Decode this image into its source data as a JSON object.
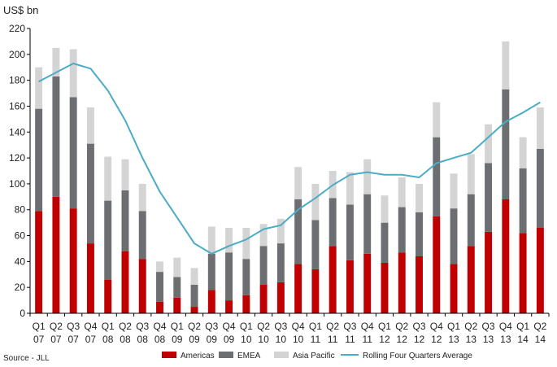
{
  "chart_data": {
    "type": "bar",
    "stacked": true,
    "unit_label": "US$ bn",
    "source": "Source - JLL",
    "ylim": [
      0,
      220
    ],
    "yticks": [
      0,
      20,
      40,
      60,
      80,
      100,
      120,
      140,
      160,
      180,
      200,
      220
    ],
    "grid": false,
    "legend_position": "bottom",
    "categories": [
      [
        "Q1",
        "07"
      ],
      [
        "Q2",
        "07"
      ],
      [
        "Q3",
        "07"
      ],
      [
        "Q4",
        "07"
      ],
      [
        "Q1",
        "08"
      ],
      [
        "Q2",
        "08"
      ],
      [
        "Q3",
        "08"
      ],
      [
        "Q4",
        "08"
      ],
      [
        "Q1",
        "09"
      ],
      [
        "Q2",
        "09"
      ],
      [
        "Q3",
        "09"
      ],
      [
        "Q4",
        "09"
      ],
      [
        "Q1",
        "10"
      ],
      [
        "Q2",
        "10"
      ],
      [
        "Q3",
        "10"
      ],
      [
        "Q4",
        "10"
      ],
      [
        "Q1",
        "11"
      ],
      [
        "Q2",
        "11"
      ],
      [
        "Q3",
        "11"
      ],
      [
        "Q4",
        "11"
      ],
      [
        "Q1",
        "12"
      ],
      [
        "Q2",
        "12"
      ],
      [
        "Q3",
        "12"
      ],
      [
        "Q4",
        "12"
      ],
      [
        "Q1",
        "13"
      ],
      [
        "Q2",
        "13"
      ],
      [
        "Q3",
        "13"
      ],
      [
        "Q4",
        "13"
      ],
      [
        "Q1",
        "14"
      ],
      [
        "Q2",
        "14"
      ]
    ],
    "series": [
      {
        "name": "Americas",
        "color": "#c00000",
        "values": [
          79,
          90,
          81,
          54,
          26,
          48,
          42,
          9,
          12,
          5,
          18,
          10,
          14,
          22,
          24,
          38,
          34,
          52,
          41,
          46,
          39,
          47,
          44,
          75,
          38,
          52,
          63,
          88,
          62,
          66
        ]
      },
      {
        "name": "EMEA",
        "color": "#6d6e71",
        "values": [
          79,
          93,
          86,
          77,
          61,
          47,
          37,
          23,
          16,
          17,
          28,
          37,
          28,
          30,
          30,
          50,
          38,
          37,
          43,
          46,
          31,
          35,
          34,
          61,
          43,
          40,
          53,
          85,
          50,
          61
        ]
      },
      {
        "name": "Asia Pacific",
        "color": "#d4d4d4",
        "values": [
          32,
          22,
          37,
          28,
          34,
          24,
          21,
          8,
          15,
          13,
          21,
          19,
          24,
          17,
          19,
          25,
          28,
          21,
          25,
          27,
          21,
          23,
          22,
          27,
          27,
          31,
          30,
          37,
          24,
          32
        ]
      }
    ],
    "line": {
      "name": "Rolling Four Quarters Average",
      "color": "#4bacc6",
      "values": [
        179,
        186,
        193,
        189,
        172,
        149,
        120,
        94,
        74,
        54,
        46,
        52,
        57,
        65,
        68,
        80,
        89,
        99,
        107,
        109,
        107,
        107,
        105,
        116,
        120,
        124,
        136,
        148,
        155,
        163
      ]
    }
  }
}
